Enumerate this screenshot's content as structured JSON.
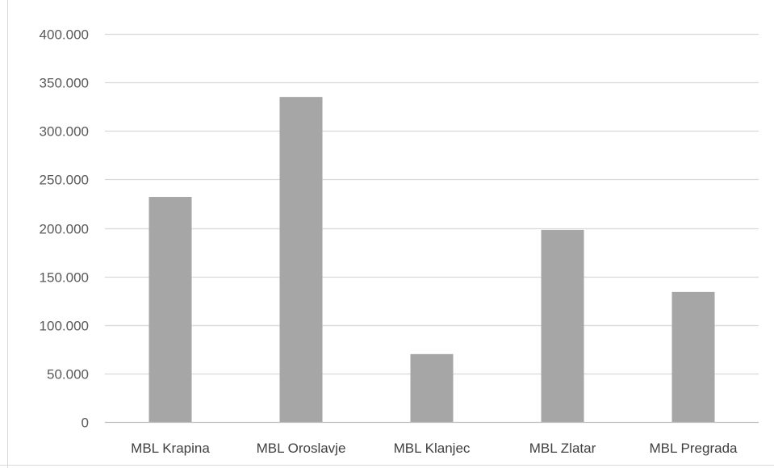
{
  "chart_data": {
    "type": "bar",
    "title": "",
    "xlabel": "",
    "ylabel": "",
    "categories": [
      "MBL Krapina",
      "MBL Oroslavje",
      "MBL Klanjec",
      "MBL Zlatar",
      "MBL Pregrada"
    ],
    "values": [
      232000,
      335000,
      70000,
      198000,
      134000
    ],
    "ylim": [
      0,
      400000
    ],
    "yticks": [
      0,
      50000,
      100000,
      150000,
      200000,
      250000,
      300000,
      350000,
      400000
    ],
    "ytick_labels": [
      "0",
      "50.000",
      "100.000",
      "150.000",
      "200.000",
      "250.000",
      "300.000",
      "350.000",
      "400.000"
    ],
    "grid": true,
    "legend": "none",
    "colors": {
      "bar": "#a6a6a6",
      "gridline": "#d9d9d9",
      "axis": "#bfbfbf",
      "tick_text": "#595959",
      "category_text": "#404040"
    }
  }
}
